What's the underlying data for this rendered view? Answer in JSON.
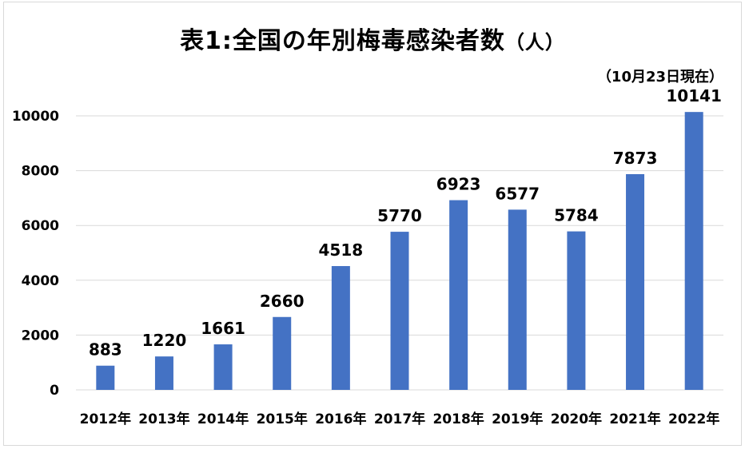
{
  "chart_data": {
    "type": "bar",
    "title": "表1:全国の年別梅毒感染者数",
    "title_unit": "（人）",
    "annotation": "（10月23日現在）",
    "categories": [
      "2012年",
      "2013年",
      "2014年",
      "2015年",
      "2016年",
      "2017年",
      "2018年",
      "2019年",
      "2020年",
      "2021年",
      "2022年"
    ],
    "values": [
      883,
      1220,
      1661,
      2660,
      4518,
      5770,
      6923,
      6577,
      5784,
      7873,
      10141
    ],
    "yticks": [
      0,
      2000,
      4000,
      6000,
      8000,
      10000
    ],
    "ylim": [
      0,
      10000
    ],
    "grid": true,
    "legend": "none",
    "bar_color": "#4472C4",
    "grid_color": "#d9d9d9"
  }
}
